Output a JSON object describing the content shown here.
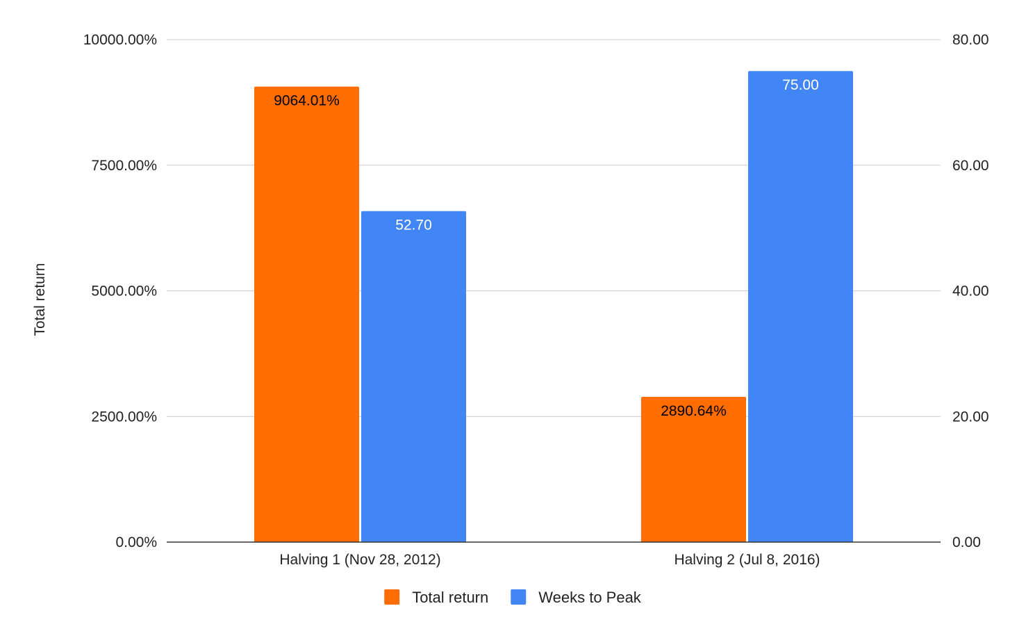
{
  "chart_data": {
    "type": "bar",
    "categories": [
      "Halving 1 (Nov 28, 2012)",
      "Halving 2 (Jul 8, 2016)"
    ],
    "series": [
      {
        "name": "Total return",
        "axis": "left",
        "color": "#ff6d01",
        "values": [
          9064.01,
          2890.64
        ],
        "labels": [
          "9064.01%",
          "2890.64%"
        ],
        "label_color": "#000000"
      },
      {
        "name": "Weeks to Peak",
        "axis": "right",
        "color": "#4285f4",
        "values": [
          52.7,
          75.0
        ],
        "labels": [
          "52.70",
          "75.00"
        ],
        "label_color": "#ffffff"
      }
    ],
    "ylabel": "Total return",
    "ylim": [
      0,
      10000
    ],
    "y_ticks": [
      "0.00%",
      "2500.00%",
      "5000.00%",
      "7500.00%",
      "10000.00%"
    ],
    "y2lim": [
      0,
      80
    ],
    "y2_ticks": [
      "0.00",
      "20.00",
      "40.00",
      "60.00",
      "80.00"
    ],
    "grid": true,
    "legend_position": "bottom"
  }
}
